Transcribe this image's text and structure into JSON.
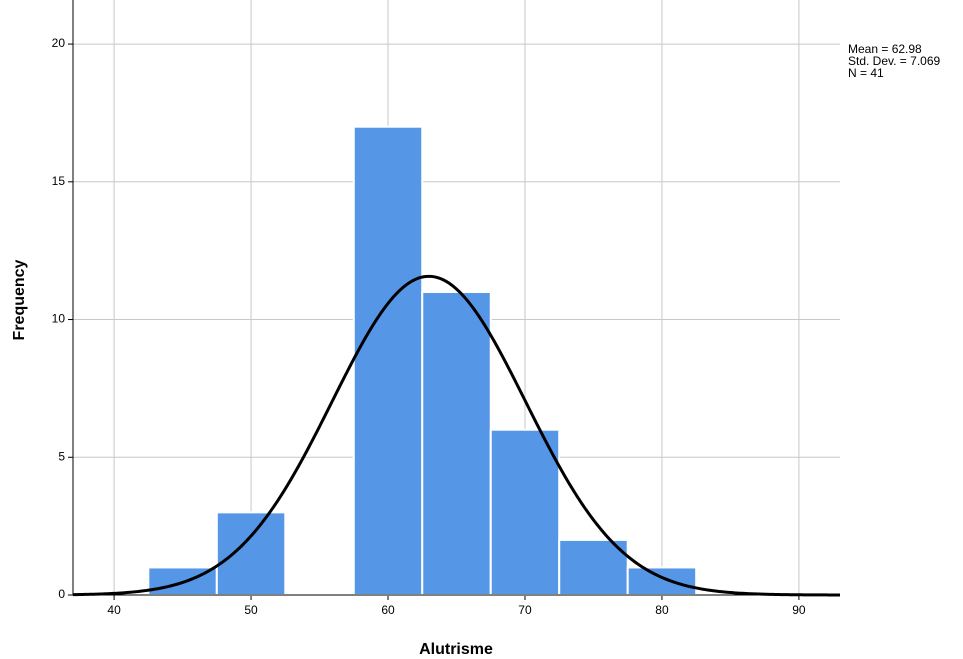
{
  "chart_data": {
    "type": "histogram",
    "x_label": "Alutrisme",
    "y_label": "Frequency",
    "bins": [
      42.5,
      47.5,
      52.5,
      57.5,
      62.5,
      67.5,
      72.5,
      77.5,
      82.5
    ],
    "values": [
      1,
      3,
      0,
      17,
      11,
      6,
      2,
      1
    ],
    "color": "#5596e6",
    "curve_color": "#000000",
    "xlim": [
      37,
      93
    ],
    "xticks": [
      40,
      50,
      60,
      70,
      80,
      90
    ],
    "ylim": [
      0,
      21.6
    ],
    "yticks": [
      0,
      5,
      10,
      15,
      20
    ],
    "grid": true,
    "stats": [
      {
        "value": 62.98,
        "label": "Mean = 62.98"
      },
      {
        "value": 7.069,
        "label": "Std. Dev. = 7.069"
      },
      {
        "value": 41,
        "label": "N = 41"
      }
    ]
  }
}
